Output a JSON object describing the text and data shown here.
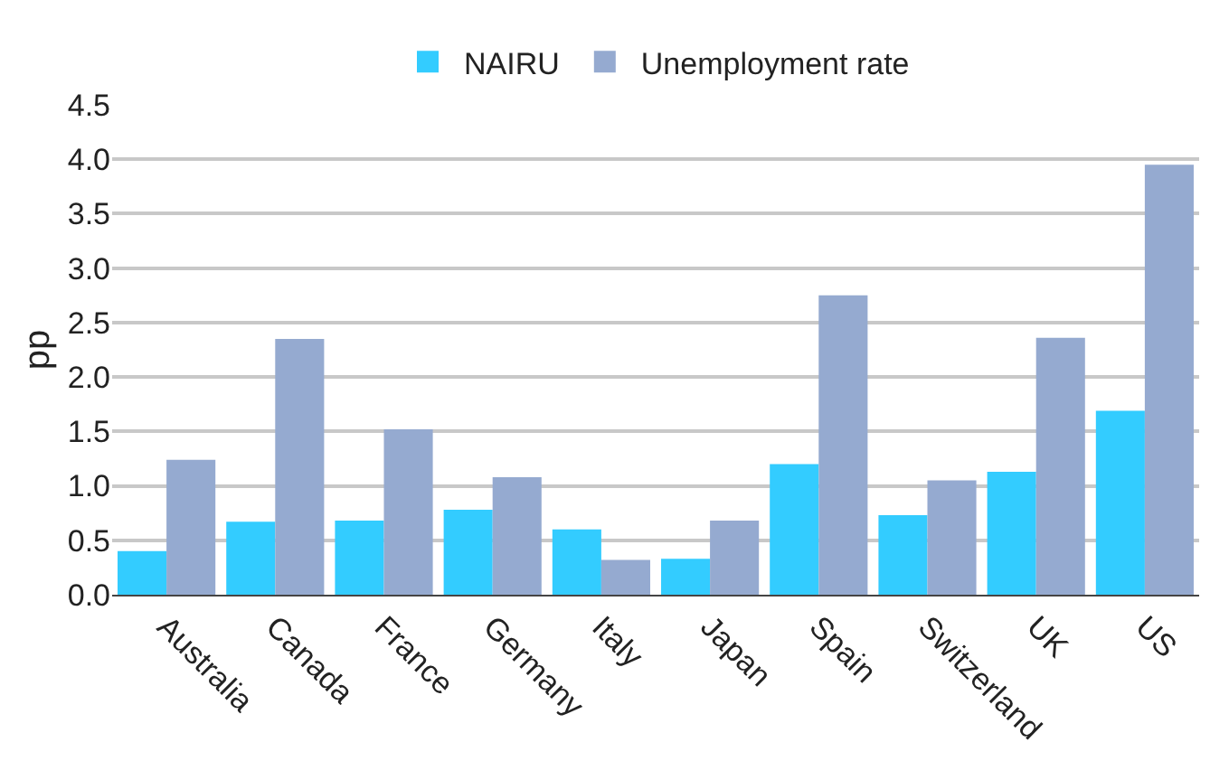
{
  "chart_data": {
    "type": "bar",
    "ylabel": "pp",
    "categories": [
      "Australia",
      "Canada",
      "France",
      "Germany",
      "Italy",
      "Japan",
      "Spain",
      "Switzerland",
      "UK",
      "US"
    ],
    "series": [
      {
        "name": "NAIRU",
        "color": "#33ccff",
        "values": [
          0.4,
          0.67,
          0.68,
          0.78,
          0.6,
          0.33,
          1.2,
          0.73,
          1.13,
          1.69
        ]
      },
      {
        "name": "Unemployment rate",
        "color": "#95aad0",
        "values": [
          1.24,
          2.35,
          1.52,
          1.08,
          0.32,
          0.68,
          2.75,
          1.05,
          2.36,
          3.95
        ]
      }
    ],
    "ylim": [
      0,
      4.5
    ],
    "yticks": [
      {
        "value": 0,
        "label": "0.0"
      },
      {
        "value": 0.5,
        "label": "0.5"
      },
      {
        "value": 1,
        "label": "1.0"
      },
      {
        "value": 1.5,
        "label": "1.5"
      },
      {
        "value": 2,
        "label": "2.0"
      },
      {
        "value": 2.5,
        "label": "2.5"
      },
      {
        "value": 3,
        "label": "3.0"
      },
      {
        "value": 3.5,
        "label": "3.5"
      },
      {
        "value": 4,
        "label": "4.0"
      },
      {
        "value": 4.5,
        "label": "4.5"
      }
    ],
    "grid": "y",
    "legend": "top"
  }
}
